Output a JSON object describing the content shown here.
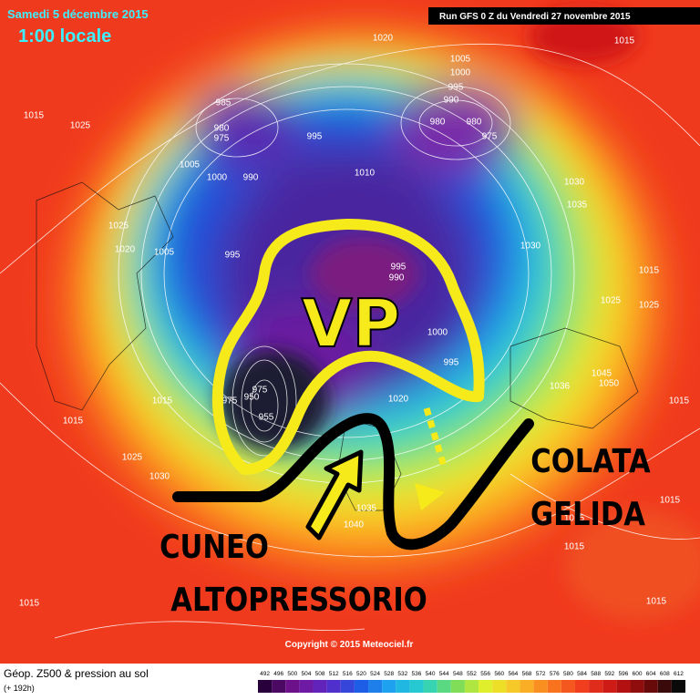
{
  "header": {
    "date": "Samedi 5 décembre 2015",
    "time": "1:00 locale",
    "run": "Run GFS 0 Z du Vendredi 27 novembre 2015"
  },
  "map": {
    "isobar_labels": [
      1020,
      1015,
      1015,
      1025,
      1005,
      1000,
      995,
      990,
      980,
      980,
      975,
      985,
      980,
      975,
      995,
      1005,
      1000,
      990,
      1010,
      1025,
      1020,
      1005,
      995,
      1030,
      1035,
      1030,
      1015,
      1025,
      1025,
      995,
      990,
      1000,
      995,
      1015,
      1015,
      1020,
      1045,
      1050,
      1036,
      1025,
      1030,
      1040,
      1035,
      1015,
      1015,
      1015,
      1015,
      1015,
      1015,
      975,
      955,
      975,
      950
    ],
    "annotations": {
      "vp": "VP",
      "wedge_line1": "CUNEO",
      "wedge_line2": "ALTOPRESSORIO",
      "cold_line1": "COLATA",
      "cold_line2": "GELIDA"
    },
    "copyright": "Copyright © 2015 Meteociel.fr"
  },
  "footer": {
    "title": "Géop. Z500 & pression au sol",
    "subtitle": "(+ 192h)",
    "scale": [
      492,
      496,
      500,
      504,
      508,
      512,
      516,
      520,
      524,
      528,
      532,
      536,
      540,
      544,
      548,
      552,
      556,
      560,
      564,
      568,
      572,
      576,
      580,
      584,
      588,
      592,
      596,
      600,
      604,
      608,
      612
    ]
  }
}
